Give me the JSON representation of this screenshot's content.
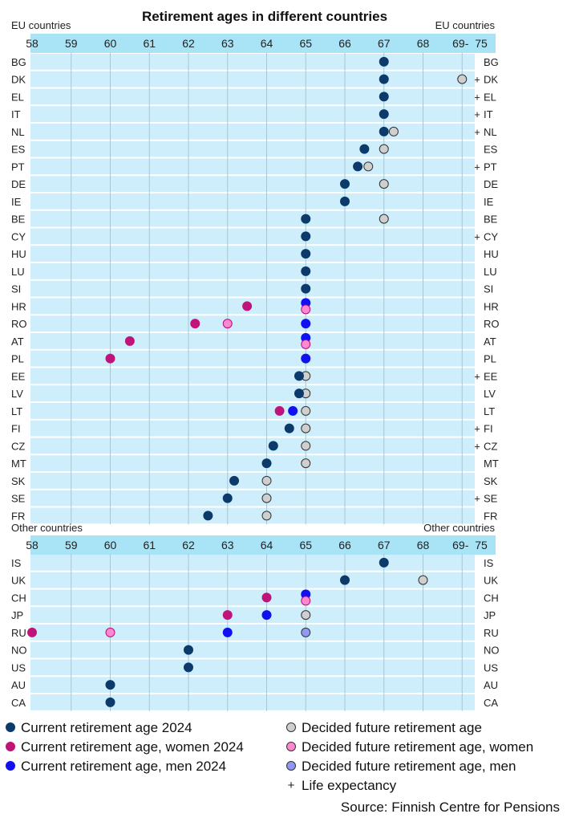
{
  "chart_data": {
    "type": "scatter",
    "title": "Retirement ages in different countries",
    "source": "Source: Finnish Centre for Pensions",
    "x_ticks": [
      "58",
      "59",
      "60",
      "61",
      "62",
      "63",
      "64",
      "65",
      "66",
      "67",
      "68",
      "69-",
      "75"
    ],
    "xlim": [
      58,
      69.5
    ],
    "grid": true,
    "legend_position": "bottom",
    "colors": {
      "current": "#0b3a6b",
      "current_women": "#c0137a",
      "current_men": "#1010f0",
      "future": "#cfcfcf",
      "future_women": "#ff88d0",
      "future_men": "#8f98f5",
      "life_expectancy": "#1a3a7a",
      "band": "#cdeefa",
      "axis_band": "#a9e3f6"
    },
    "legend": [
      {
        "key": "current",
        "label": "Current retirement age 2024"
      },
      {
        "key": "current_women",
        "label": "Current retirement age, women 2024"
      },
      {
        "key": "current_men",
        "label": "Current retirement age, men 2024"
      },
      {
        "key": "future",
        "label": "Decided future retirement age"
      },
      {
        "key": "future_women",
        "label": "Decided future retirement age, women"
      },
      {
        "key": "future_men",
        "label": "Decided future retirement age, men"
      },
      {
        "key": "life_expectancy",
        "label": "Life expectancy",
        "symbol": "+"
      }
    ],
    "panels": [
      {
        "name": "EU countries",
        "rows": [
          {
            "country": "BG",
            "current": 67
          },
          {
            "country": "DK",
            "current": 67,
            "future": 69,
            "life_expectancy": true
          },
          {
            "country": "EL",
            "current": 67,
            "life_expectancy": true
          },
          {
            "country": "IT",
            "current": 67,
            "life_expectancy": true
          },
          {
            "country": "NL",
            "current": 67,
            "future": 67.25,
            "life_expectancy": true
          },
          {
            "country": "ES",
            "current": 66.5,
            "future": 67
          },
          {
            "country": "PT",
            "current": 66.33,
            "future": 66.6,
            "life_expectancy": true
          },
          {
            "country": "DE",
            "current": 66,
            "future": 67
          },
          {
            "country": "IE",
            "current": 66
          },
          {
            "country": "BE",
            "current": 65,
            "future": 67
          },
          {
            "country": "CY",
            "current": 65,
            "life_expectancy": true
          },
          {
            "country": "HU",
            "current": 65
          },
          {
            "country": "LU",
            "current": 65
          },
          {
            "country": "SI",
            "current": 65
          },
          {
            "country": "HR",
            "current_women": 63.5,
            "current_men": 65,
            "future_women": 65
          },
          {
            "country": "RO",
            "current_women": 62.17,
            "current_men": 65,
            "future_women": 63
          },
          {
            "country": "AT",
            "current_women": 60.5,
            "current_men": 65,
            "future_women": 65
          },
          {
            "country": "PL",
            "current_women": 60,
            "current_men": 65
          },
          {
            "country": "EE",
            "current": 64.83,
            "future": 65,
            "life_expectancy": true
          },
          {
            "country": "LV",
            "current": 64.83,
            "future": 65
          },
          {
            "country": "LT",
            "current_women": 64.33,
            "current_men": 64.67,
            "future": 65
          },
          {
            "country": "FI",
            "current": 64.58,
            "future": 65,
            "life_expectancy": true
          },
          {
            "country": "CZ",
            "current": 64.17,
            "future": 65,
            "life_expectancy": true
          },
          {
            "country": "MT",
            "current": 64,
            "future": 65
          },
          {
            "country": "SK",
            "current": 63.17,
            "future": 64
          },
          {
            "country": "SE",
            "current": 63,
            "future": 64,
            "life_expectancy": true
          },
          {
            "country": "FR",
            "current": 62.5,
            "future": 64
          }
        ]
      },
      {
        "name": "Other countries",
        "rows": [
          {
            "country": "IS",
            "current": 67
          },
          {
            "country": "UK",
            "current": 66,
            "future": 68
          },
          {
            "country": "CH",
            "current_women": 64,
            "current_men": 65,
            "future_women": 65
          },
          {
            "country": "JP",
            "current_women": 63,
            "current_men": 64,
            "future": 65
          },
          {
            "country": "RU",
            "current_women": 58,
            "current_men": 63,
            "future_women": 60,
            "future_men": 65
          },
          {
            "country": "NO",
            "current": 62
          },
          {
            "country": "US",
            "current": 62
          },
          {
            "country": "AU",
            "current": 60
          },
          {
            "country": "CA",
            "current": 60
          }
        ]
      }
    ]
  }
}
